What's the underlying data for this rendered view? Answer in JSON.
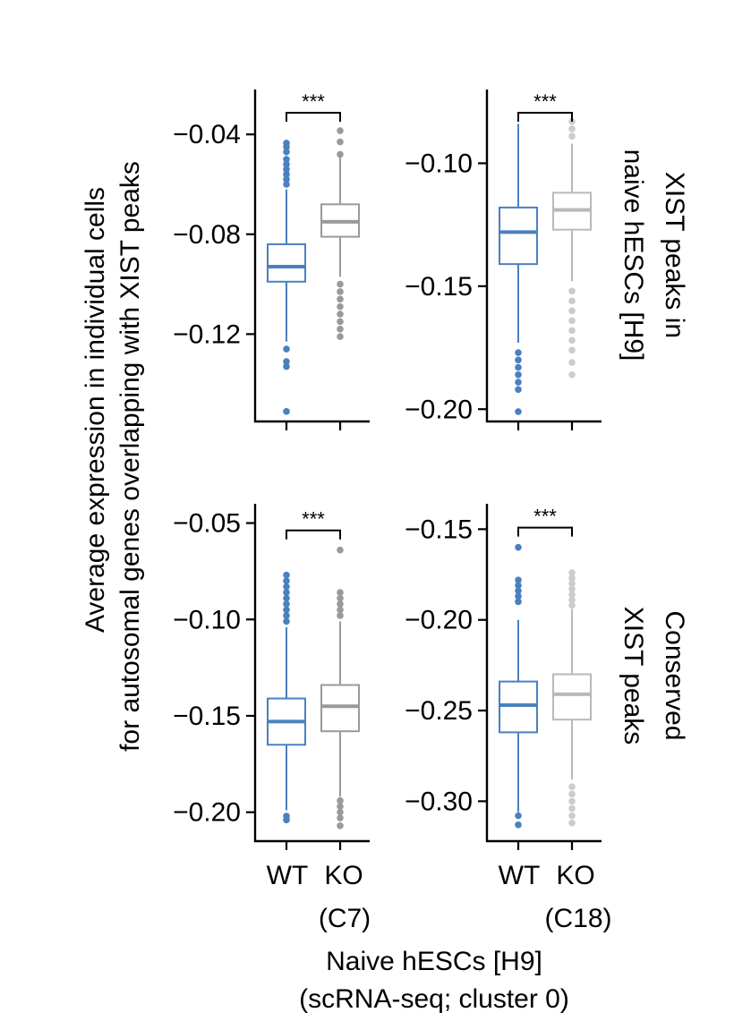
{
  "y_axis_title_lines": [
    "Average expression in individual cells",
    "for autosomal genes overlapping with XIST peaks"
  ],
  "x_axis_title_lines": [
    "Naive hESCs [H9]",
    "(scRNA-seq; cluster 0)"
  ],
  "row_labels": [
    [
      "XIST peaks in",
      "naive hESCs [H9]"
    ],
    [
      "Conserved",
      "XIST peaks"
    ]
  ],
  "column_categories": [
    [
      "WT",
      "KO"
    ],
    [
      "WT",
      "KO"
    ]
  ],
  "column_subtitles": [
    "(C7)",
    "(C18)"
  ],
  "colors": {
    "WT": "#4a80c0",
    "KO_C7": "#9a9a9a",
    "KO_C18": "#b9b9b9",
    "KO_C18_outlier": "#cccccc",
    "axis": "#000000"
  },
  "chart_data": [
    {
      "type": "box",
      "panel": "row1-col1 (C7)",
      "ylim": [
        -0.155,
        -0.022
      ],
      "yticks": [
        -0.04,
        -0.08,
        -0.12
      ],
      "ytick_labels": [
        "−0.04",
        "−0.08",
        "−0.12"
      ],
      "significance": "***",
      "series": [
        {
          "name": "WT",
          "whisker_low": -0.123,
          "q1": -0.099,
          "median": -0.093,
          "q3": -0.084,
          "whisker_high": -0.062,
          "outliers": [
            -0.0435,
            -0.045,
            -0.047,
            -0.05,
            -0.052,
            -0.054,
            -0.056,
            -0.058,
            -0.06,
            -0.126,
            -0.131,
            -0.133,
            -0.151
          ]
        },
        {
          "name": "KO",
          "whisker_low": -0.097,
          "q1": -0.081,
          "median": -0.075,
          "q3": -0.068,
          "whisker_high": -0.047,
          "outliers": [
            -0.0385,
            -0.043,
            -0.048,
            -0.1,
            -0.103,
            -0.106,
            -0.109,
            -0.112,
            -0.115,
            -0.118,
            -0.121
          ]
        }
      ]
    },
    {
      "type": "box",
      "panel": "row1-col2 (C18)",
      "ylim": [
        -0.205,
        -0.07
      ],
      "yticks": [
        -0.1,
        -0.15,
        -0.2
      ],
      "ytick_labels": [
        "−0.10",
        "−0.15",
        "−0.20"
      ],
      "significance": "***",
      "series": [
        {
          "name": "WT",
          "whisker_low": -0.173,
          "q1": -0.141,
          "median": -0.128,
          "q3": -0.118,
          "whisker_high": -0.084,
          "outliers": [
            -0.177,
            -0.18,
            -0.183,
            -0.186,
            -0.189,
            -0.192,
            -0.201
          ]
        },
        {
          "name": "KO",
          "whisker_low": -0.148,
          "q1": -0.127,
          "median": -0.119,
          "q3": -0.112,
          "whisker_high": -0.092,
          "outliers": [
            -0.083,
            -0.086,
            -0.089,
            -0.152,
            -0.156,
            -0.16,
            -0.164,
            -0.168,
            -0.172,
            -0.176,
            -0.181,
            -0.186
          ]
        }
      ]
    },
    {
      "type": "box",
      "panel": "row2-col1 (C7)",
      "ylim": [
        -0.215,
        -0.04
      ],
      "yticks": [
        -0.05,
        -0.1,
        -0.15,
        -0.2
      ],
      "ytick_labels": [
        "−0.05",
        "−0.10",
        "−0.15",
        "−0.20"
      ],
      "significance": "***",
      "series": [
        {
          "name": "WT",
          "whisker_low": -0.199,
          "q1": -0.165,
          "median": -0.153,
          "q3": -0.141,
          "whisker_high": -0.104,
          "outliers": [
            -0.077,
            -0.08,
            -0.083,
            -0.086,
            -0.089,
            -0.092,
            -0.095,
            -0.098,
            -0.101,
            -0.202,
            -0.204
          ]
        },
        {
          "name": "KO",
          "whisker_low": -0.192,
          "q1": -0.158,
          "median": -0.145,
          "q3": -0.134,
          "whisker_high": -0.101,
          "outliers": [
            -0.064,
            -0.086,
            -0.089,
            -0.092,
            -0.095,
            -0.098,
            -0.194,
            -0.197,
            -0.2,
            -0.203,
            -0.207
          ]
        }
      ]
    },
    {
      "type": "box",
      "panel": "row2-col2 (C18)",
      "ylim": [
        -0.322,
        -0.136
      ],
      "yticks": [
        -0.15,
        -0.2,
        -0.25,
        -0.3
      ],
      "ytick_labels": [
        "−0.15",
        "−0.20",
        "−0.25",
        "−0.30"
      ],
      "significance": "***",
      "series": [
        {
          "name": "WT",
          "whisker_low": -0.306,
          "q1": -0.262,
          "median": -0.247,
          "q3": -0.234,
          "whisker_high": -0.2,
          "outliers": [
            -0.16,
            -0.178,
            -0.181,
            -0.184,
            -0.187,
            -0.19,
            -0.308,
            -0.313
          ]
        },
        {
          "name": "KO",
          "whisker_low": -0.288,
          "q1": -0.255,
          "median": -0.241,
          "q3": -0.23,
          "whisker_high": -0.194,
          "outliers": [
            -0.174,
            -0.177,
            -0.18,
            -0.183,
            -0.186,
            -0.189,
            -0.192,
            -0.292,
            -0.296,
            -0.3,
            -0.304,
            -0.308,
            -0.312
          ]
        }
      ]
    }
  ]
}
